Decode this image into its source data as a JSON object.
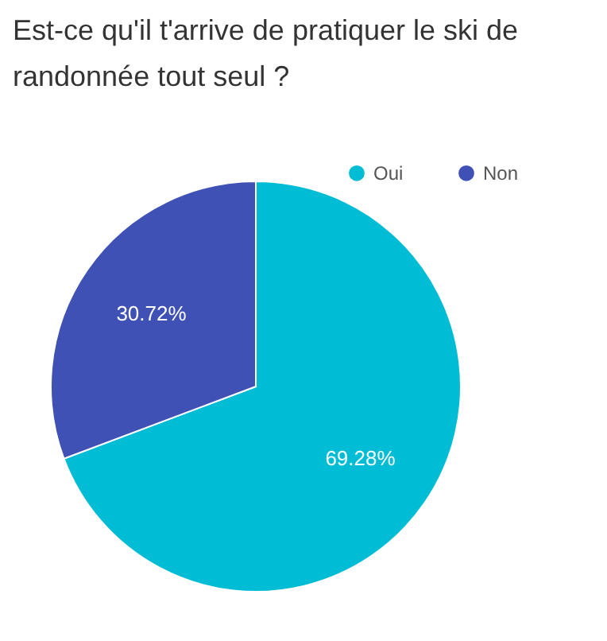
{
  "chart_data": {
    "type": "pie",
    "title": "Est-ce qu'il t'arrive de pratiquer le ski de randonnée tout seul ?",
    "categories": [
      "Oui",
      "Non"
    ],
    "values": [
      69.28,
      30.72
    ],
    "value_labels": [
      "69.28%",
      "30.72%"
    ],
    "colors": [
      "#00bcd4",
      "#3f51b5"
    ],
    "legend": "top right"
  }
}
